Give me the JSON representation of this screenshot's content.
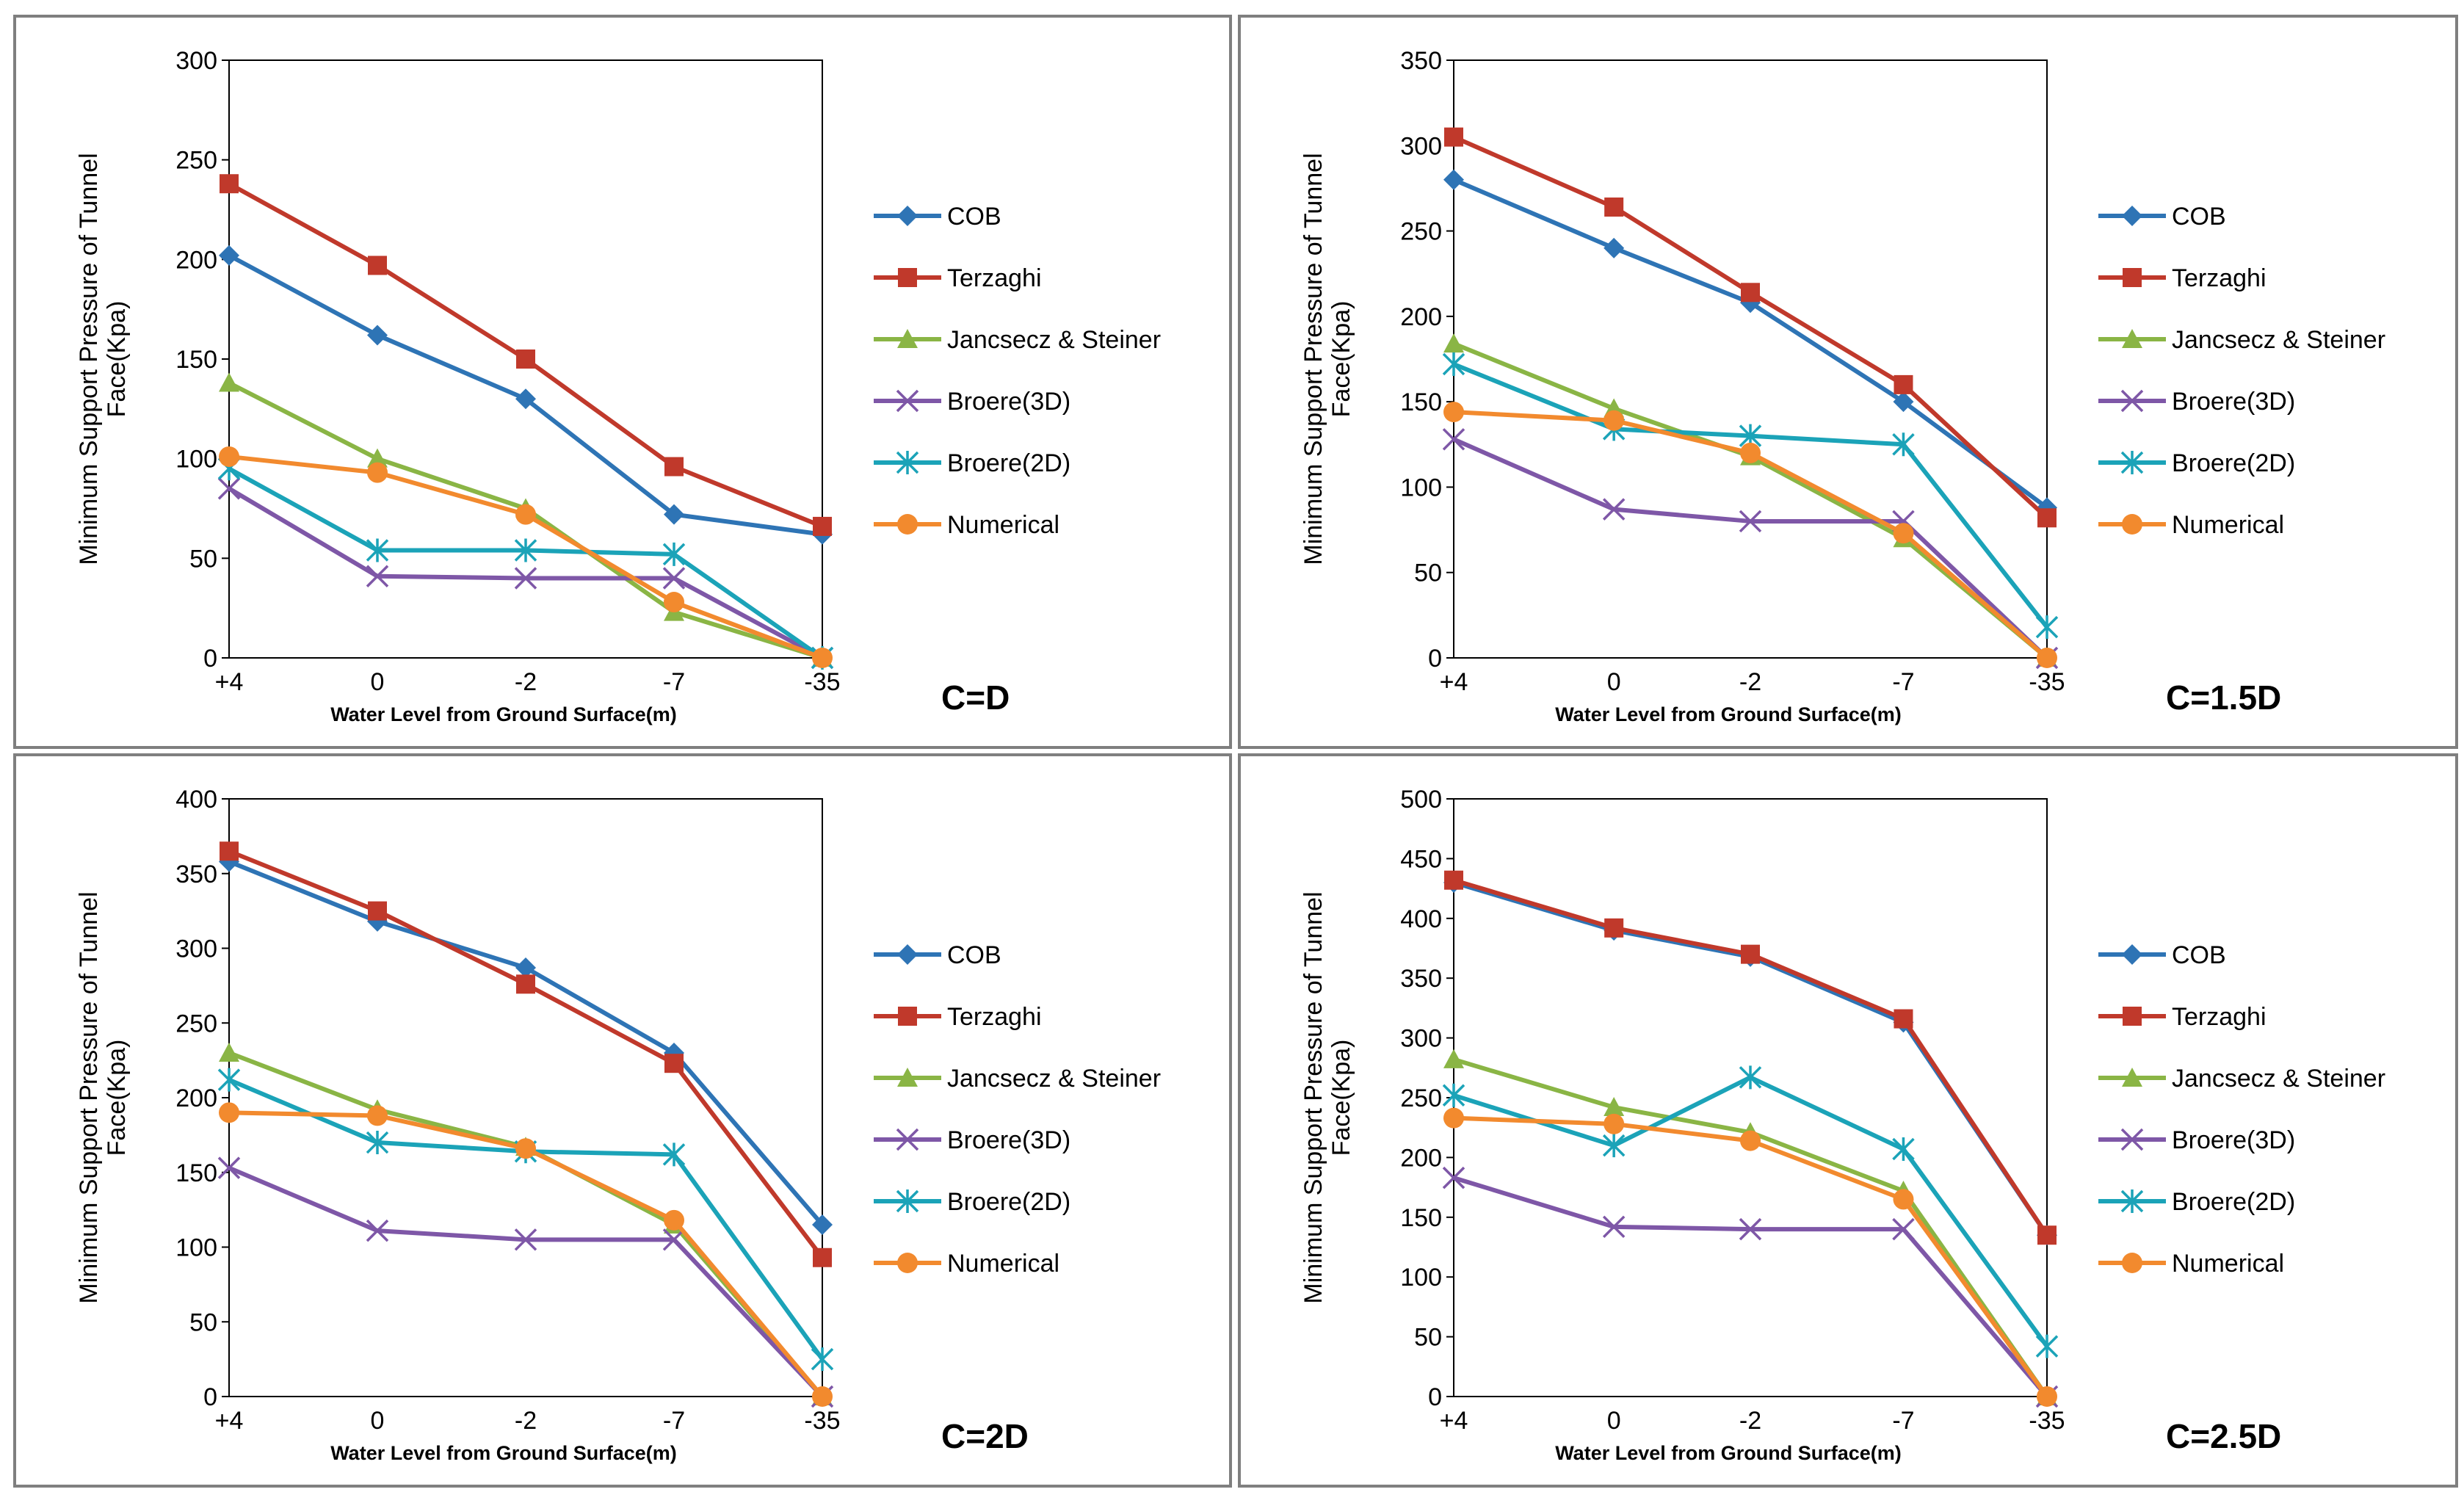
{
  "figure": {
    "series_styles": [
      {
        "name": "COB",
        "color": "#2e74b5",
        "marker": "diamond"
      },
      {
        "name": "Terzaghi",
        "color": "#c0392b",
        "marker": "square"
      },
      {
        "name": "Jancsecz & Steiner",
        "color": "#8ab545",
        "marker": "triangle"
      },
      {
        "name": "Broere(3D)",
        "color": "#7e57a7",
        "marker": "x"
      },
      {
        "name": "Broere(2D)",
        "color": "#1ba3b8",
        "marker": "star"
      },
      {
        "name": "Numerical",
        "color": "#f28a2e",
        "marker": "circle"
      }
    ]
  },
  "chart_data": [
    {
      "type": "line",
      "case_label": "C=D",
      "ylabel_line1": "Minimum Support Pressure of Tunnel",
      "ylabel_line2": "Face(Kpa)",
      "xlabel": "Water Level from Ground Surface(m)",
      "x_tick_labels": [
        "+4",
        "0",
        "-2",
        "-7",
        "-35"
      ],
      "ylim": [
        0,
        300
      ],
      "y_step": 50,
      "x_positions": [
        0,
        0.25,
        0.5,
        0.75,
        1
      ],
      "series": [
        {
          "name": "COB",
          "values": [
            202,
            162,
            130,
            72,
            62
          ]
        },
        {
          "name": "Terzaghi",
          "values": [
            238,
            197,
            150,
            96,
            66
          ]
        },
        {
          "name": "Jancsecz & Steiner",
          "values": [
            138,
            100,
            75,
            23,
            0
          ]
        },
        {
          "name": "Broere(3D)",
          "values": [
            85,
            41,
            40,
            40,
            0
          ]
        },
        {
          "name": "Broere(2D)",
          "values": [
            95,
            54,
            54,
            52,
            0
          ]
        },
        {
          "name": "Numerical",
          "values": [
            101,
            93,
            72,
            28,
            0
          ]
        }
      ]
    },
    {
      "type": "line",
      "case_label": "C=1.5D",
      "ylabel_line1": "Minimum Support Pressure of Tunnel",
      "ylabel_line2": "Face(Kpa)",
      "xlabel": "Water Level from Ground Surface(m)",
      "x_tick_labels": [
        "+4",
        "0",
        "-2",
        "-7",
        "-35"
      ],
      "ylim": [
        0,
        350
      ],
      "y_step": 50,
      "x_positions": [
        0,
        0.27,
        0.5,
        0.758,
        1
      ],
      "series": [
        {
          "name": "COB",
          "values": [
            280,
            240,
            208,
            150,
            88
          ]
        },
        {
          "name": "Terzaghi",
          "values": [
            305,
            264,
            214,
            160,
            82
          ]
        },
        {
          "name": "Jancsecz & Steiner",
          "values": [
            184,
            146,
            118,
            70,
            0
          ]
        },
        {
          "name": "Broere(3D)",
          "values": [
            128,
            87,
            80,
            80,
            0
          ]
        },
        {
          "name": "Broere(2D)",
          "values": [
            172,
            134,
            130,
            125,
            18
          ]
        },
        {
          "name": "Numerical",
          "values": [
            144,
            139,
            120,
            73,
            0
          ]
        }
      ]
    },
    {
      "type": "line",
      "case_label": "C=2D",
      "ylabel_line1": "Minimum Support Pressure of Tunnel",
      "ylabel_line2": "Face(Kpa)",
      "xlabel": "Water Level from Ground Surface(m)",
      "x_tick_labels": [
        "+4",
        "0",
        "-2",
        "-7",
        "-35"
      ],
      "ylim": [
        0,
        400
      ],
      "y_step": 50,
      "x_positions": [
        0,
        0.25,
        0.5,
        0.75,
        1
      ],
      "series": [
        {
          "name": "COB",
          "values": [
            358,
            318,
            287,
            230,
            115
          ]
        },
        {
          "name": "Terzaghi",
          "values": [
            365,
            325,
            276,
            223,
            93
          ]
        },
        {
          "name": "Jancsecz & Steiner",
          "values": [
            230,
            192,
            167,
            115,
            0
          ]
        },
        {
          "name": "Broere(3D)",
          "values": [
            153,
            111,
            105,
            105,
            0
          ]
        },
        {
          "name": "Broere(2D)",
          "values": [
            212,
            170,
            164,
            162,
            25
          ]
        },
        {
          "name": "Numerical",
          "values": [
            190,
            188,
            166,
            118,
            0
          ]
        }
      ]
    },
    {
      "type": "line",
      "case_label": "C=2.5D",
      "ylabel_line1": "Minimum Support Pressure of Tunnel",
      "ylabel_line2": "Face(Kpa)",
      "xlabel": "Water Level from Ground Surface(m)",
      "x_tick_labels": [
        "+4",
        "0",
        "-2",
        "-7",
        "-35"
      ],
      "ylim": [
        0,
        500
      ],
      "y_step": 50,
      "x_positions": [
        0,
        0.27,
        0.5,
        0.758,
        1
      ],
      "series": [
        {
          "name": "COB",
          "values": [
            430,
            390,
            368,
            313,
            135
          ]
        },
        {
          "name": "Terzaghi",
          "values": [
            432,
            392,
            370,
            316,
            135
          ]
        },
        {
          "name": "Jancsecz & Steiner",
          "values": [
            282,
            242,
            221,
            172,
            0
          ]
        },
        {
          "name": "Broere(3D)",
          "values": [
            183,
            142,
            140,
            140,
            0
          ]
        },
        {
          "name": "Broere(2D)",
          "values": [
            252,
            210,
            267,
            207,
            42
          ]
        },
        {
          "name": "Numerical",
          "values": [
            233,
            228,
            214,
            165,
            0
          ]
        }
      ]
    }
  ]
}
